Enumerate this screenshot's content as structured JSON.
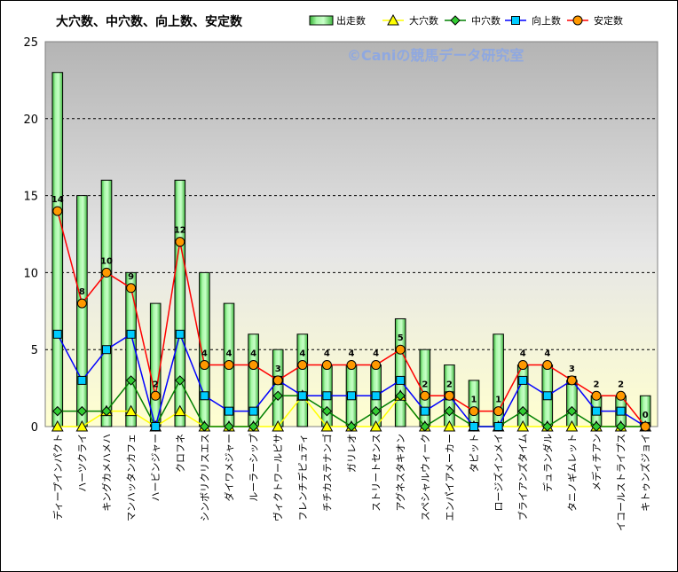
{
  "chart_data": {
    "type": "bar",
    "title": "大穴数、中穴数、向上数、安定数",
    "watermark": "©Caniの競馬データ研究室",
    "xlabel": "",
    "ylabel": "",
    "ylim": [
      0,
      25
    ],
    "yticks": [
      0,
      5,
      10,
      15,
      20,
      25
    ],
    "grid": true,
    "legend_position": "top",
    "categories": [
      "ディープインパクト",
      "ハーツクライ",
      "キングカメハメハ",
      "マンハッタンカフェ",
      "ハービンジャー",
      "クロフネ",
      "シンボリクリスエス",
      "ダイワメジャー",
      "ルーラーシップ",
      "ヴィクトワールピサ",
      "フレンチデピュティ",
      "チチカステナンゴ",
      "ガリレオ",
      "ストリートセンス",
      "アグネスタキオン",
      "スペシャルウィーク",
      "エンパイアメーカー",
      "タピット",
      "ロージズインメイ",
      "ブライアンズタイム",
      "デュランダル",
      "タニノギムレット",
      "メディチアン",
      "イコールストライプス",
      "キトゥンズジョイ"
    ],
    "series": [
      {
        "name": "出走数",
        "kind": "bar",
        "color": "#7ef07e",
        "values": [
          23,
          15,
          16,
          10,
          8,
          16,
          10,
          8,
          6,
          5,
          6,
          4,
          4,
          4,
          7,
          5,
          4,
          3,
          6,
          4,
          4,
          3,
          2,
          2,
          2
        ]
      },
      {
        "name": "大穴数",
        "kind": "line",
        "color": "#ffff00",
        "values": [
          0,
          0,
          1,
          1,
          0,
          1,
          0,
          0,
          0,
          0,
          2,
          0,
          0,
          0,
          2,
          0,
          0,
          0,
          0,
          0,
          0,
          0,
          0,
          0,
          0
        ]
      },
      {
        "name": "中穴数",
        "kind": "line",
        "color": "#008000",
        "values": [
          1,
          1,
          1,
          3,
          0,
          3,
          0,
          0,
          0,
          2,
          2,
          1,
          0,
          1,
          2,
          0,
          1,
          0,
          0,
          1,
          0,
          1,
          0,
          0,
          0
        ]
      },
      {
        "name": "向上数",
        "kind": "line",
        "color": "#0000ff",
        "values": [
          6,
          3,
          5,
          6,
          0,
          6,
          2,
          1,
          1,
          3,
          2,
          2,
          2,
          2,
          3,
          1,
          2,
          0,
          0,
          3,
          2,
          3,
          1,
          1,
          0
        ]
      },
      {
        "name": "安定数",
        "kind": "line",
        "color": "#ff0000",
        "values": [
          14,
          8,
          10,
          9,
          2,
          12,
          4,
          4,
          4,
          3,
          4,
          4,
          4,
          4,
          5,
          2,
          2,
          1,
          1,
          4,
          4,
          3,
          2,
          2,
          0
        ]
      }
    ]
  }
}
